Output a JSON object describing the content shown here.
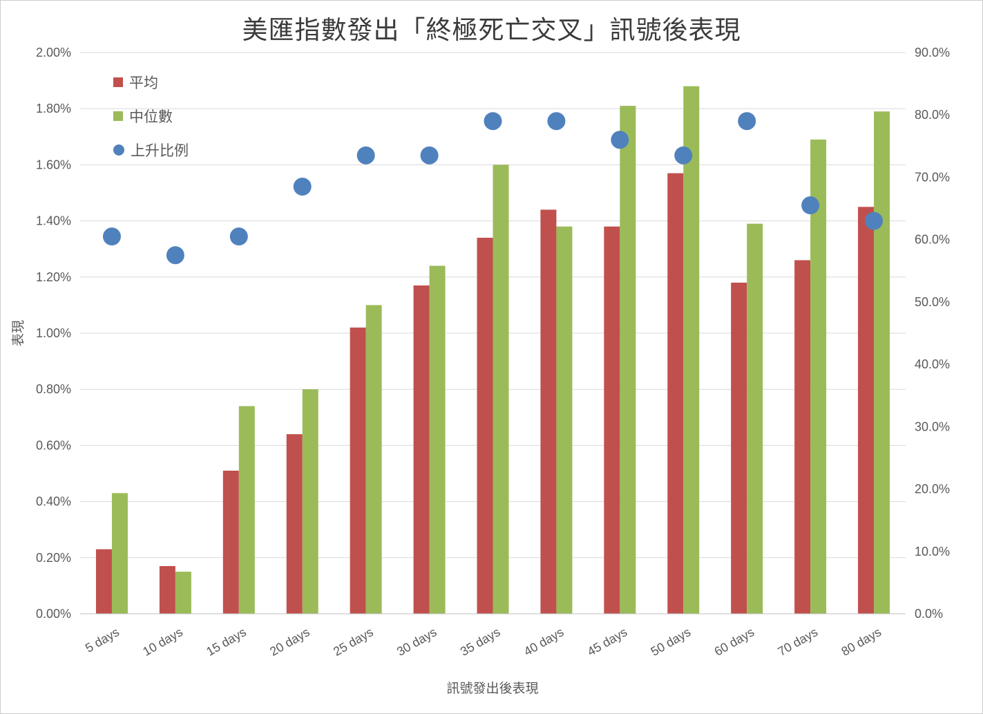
{
  "chart_data": {
    "type": "combo-bar-scatter",
    "title": "美匯指數發出「終極死亡交叉」訊號後表現",
    "x_axis": {
      "label": "訊號發出後表現",
      "categories": [
        "5 days",
        "10 days",
        "15 days",
        "20 days",
        "25 days",
        "30 days",
        "35 days",
        "40 days",
        "45 days",
        "50 days",
        "60 days",
        "70 days",
        "80 days"
      ]
    },
    "left_axis": {
      "label": "表現",
      "min": 0,
      "max": 2.0,
      "unit": "%",
      "ticks": [
        "0.00%",
        "0.20%",
        "0.40%",
        "0.60%",
        "0.80%",
        "1.00%",
        "1.20%",
        "1.40%",
        "1.60%",
        "1.80%",
        "2.00%"
      ]
    },
    "right_axis": {
      "min": 0,
      "max": 90,
      "unit": "%",
      "ticks": [
        "0.0%",
        "10.0%",
        "20.0%",
        "30.0%",
        "40.0%",
        "50.0%",
        "60.0%",
        "70.0%",
        "80.0%",
        "90.0%"
      ]
    },
    "series": [
      {
        "name": "平均",
        "type": "bar",
        "axis": "left",
        "color": "#C0504D",
        "values": [
          0.23,
          0.17,
          0.51,
          0.64,
          1.02,
          1.17,
          1.34,
          1.44,
          1.38,
          1.57,
          1.18,
          1.26,
          1.45
        ]
      },
      {
        "name": "中位數",
        "type": "bar",
        "axis": "left",
        "color": "#9BBB59",
        "values": [
          0.43,
          0.15,
          0.74,
          0.8,
          1.1,
          1.24,
          1.6,
          1.38,
          1.81,
          1.88,
          1.39,
          1.69,
          1.79
        ]
      },
      {
        "name": "上升比例",
        "type": "scatter",
        "axis": "right",
        "color": "#4F81BD",
        "values": [
          60.5,
          57.5,
          60.5,
          68.5,
          73.5,
          73.5,
          79.0,
          79.0,
          76.0,
          73.5,
          79.0,
          65.5,
          63.0
        ]
      }
    ],
    "grid": true,
    "legend_position": "top-left-inside"
  }
}
